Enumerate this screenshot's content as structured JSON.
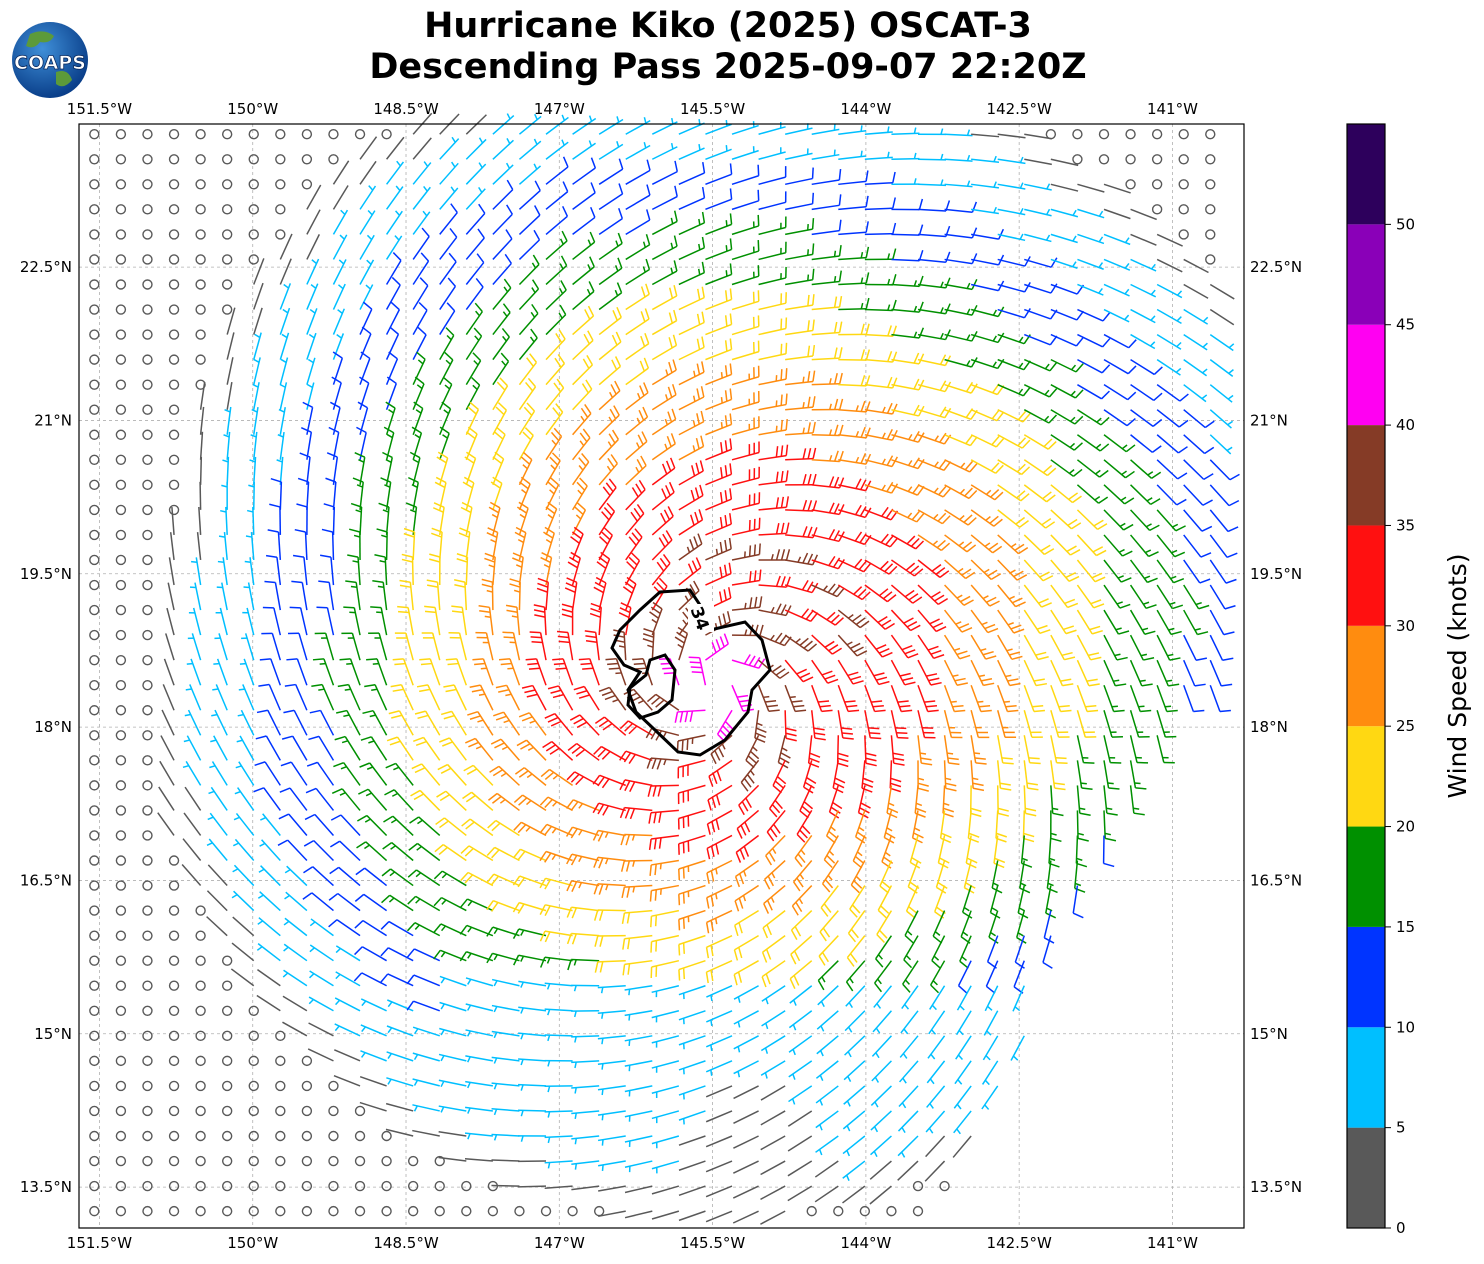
{
  "chart_data": {
    "type": "wind-barb map",
    "title_line1": "Hurricane Kiko (2025) OSCAT-3",
    "title_line2": "Descending Pass 2025-09-07 22:20Z",
    "logo_text": "COAPS",
    "lon_ticks": [
      "151.5°W",
      "150°W",
      "148.5°W",
      "147°W",
      "145.5°W",
      "144°W",
      "142.5°W",
      "141°W"
    ],
    "lon_values": [
      -151.5,
      -150,
      -148.5,
      -147,
      -145.5,
      -144,
      -142.5,
      -141
    ],
    "lat_ticks": [
      "22.5°N",
      "21°N",
      "19.5°N",
      "18°N",
      "16.5°N",
      "15°N",
      "13.5°N"
    ],
    "lat_values": [
      22.5,
      21,
      19.5,
      18,
      16.5,
      15,
      13.5
    ],
    "xlim": [
      -151.7,
      -140.3
    ],
    "ylim": [
      13.1,
      23.9
    ],
    "grid": true,
    "storm_center": {
      "lon": -145.5,
      "lat": 18.4
    },
    "contour_label": "34",
    "colorbar": {
      "label": "Wind Speed (knots)",
      "ticks": [
        "0",
        "5",
        "10",
        "15",
        "20",
        "25",
        "30",
        "35",
        "40",
        "45",
        "50"
      ],
      "bins": [
        {
          "min": 0,
          "max": 5,
          "color": "#595959"
        },
        {
          "min": 5,
          "max": 10,
          "color": "#00bfff"
        },
        {
          "min": 10,
          "max": 15,
          "color": "#0034ff"
        },
        {
          "min": 15,
          "max": 20,
          "color": "#009000"
        },
        {
          "min": 20,
          "max": 25,
          "color": "#ffd812"
        },
        {
          "min": 25,
          "max": 30,
          "color": "#ff8c0f"
        },
        {
          "min": 30,
          "max": 35,
          "color": "#ff1010"
        },
        {
          "min": 35,
          "max": 40,
          "color": "#853b26"
        },
        {
          "min": 40,
          "max": 45,
          "color": "#ff00f2"
        },
        {
          "min": 45,
          "max": 50,
          "color": "#8a00b8"
        },
        {
          "min": 50,
          "max": 55,
          "color": "#2d005c"
        }
      ]
    }
  }
}
